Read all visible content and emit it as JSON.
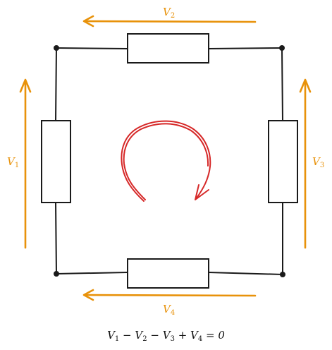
{
  "colors": {
    "wire": "#1a1a1a",
    "voltage_arrow": "#e8920a",
    "loop_arrow": "#d62828",
    "resistor_fill": "#ffffff"
  },
  "voltages": {
    "v1": {
      "symbol": "V",
      "sub": "1"
    },
    "v2": {
      "symbol": "V",
      "sub": "2"
    },
    "v3": {
      "symbol": "V",
      "sub": "3"
    },
    "v4": {
      "symbol": "V",
      "sub": "4"
    }
  },
  "equation": {
    "text": "V1 − V2 − V3 + V4 = 0",
    "terms": [
      {
        "symbol": "V",
        "sub": "1",
        "op": ""
      },
      {
        "symbol": "V",
        "sub": "2",
        "op": " − "
      },
      {
        "symbol": "V",
        "sub": "3",
        "op": " − "
      },
      {
        "symbol": "V",
        "sub": "4",
        "op": " + "
      }
    ],
    "rhs": " = 0"
  },
  "loop_direction": "clockwise"
}
